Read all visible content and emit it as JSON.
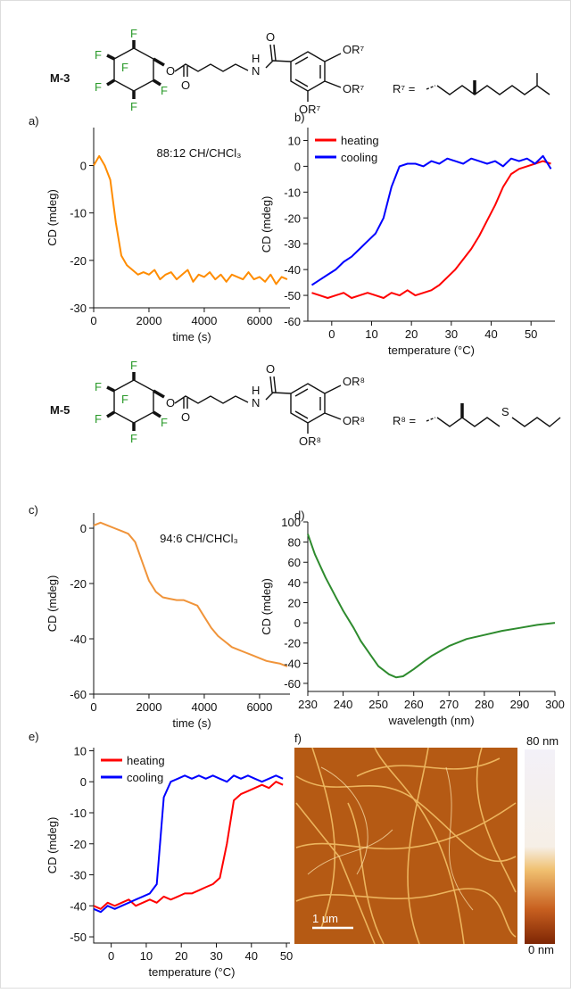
{
  "structures": [
    {
      "label": "M-3",
      "atoms": [
        "F",
        "F",
        "F",
        "F",
        "F",
        "F",
        "O",
        "O",
        "H",
        "N",
        "O",
        "OR⁷",
        "OR⁷",
        "OR⁷"
      ],
      "r_group": "R⁷ ="
    },
    {
      "label": "M-5",
      "atoms": [
        "F",
        "F",
        "F",
        "F",
        "F",
        "F",
        "O",
        "O",
        "H",
        "N",
        "O",
        "OR⁸",
        "OR⁸",
        "OR⁸"
      ],
      "r_group": "R⁸ =",
      "sulfur": "S"
    }
  ],
  "chart_data": [
    {
      "type": "line",
      "panel": "a)",
      "annotation": "88:12 CH/CHCl₃",
      "x_label": "time (s)",
      "y_label": "CD (mdeg)",
      "x": [
        0,
        200,
        400,
        600,
        800,
        1000,
        1200,
        1400,
        1600,
        1800,
        2000,
        2200,
        2400,
        2600,
        2800,
        3000,
        3200,
        3400,
        3600,
        3800,
        4000,
        4200,
        4400,
        4600,
        4800,
        5000,
        5200,
        5400,
        5600,
        5800,
        6000,
        6200,
        6400,
        6600,
        6800,
        7000
      ],
      "series": [
        {
          "color": "#ff8c00",
          "values": [
            0,
            2,
            0,
            -3,
            -12,
            -19,
            -21,
            -22,
            -23,
            -22.5,
            -23,
            -22,
            -24,
            -23,
            -22.5,
            -24,
            -23,
            -22,
            -24.5,
            -23,
            -23.5,
            -22.5,
            -24,
            -23,
            -24.5,
            -23,
            -23.5,
            -24,
            -22.5,
            -24,
            -23.5,
            -24.5,
            -23,
            -25,
            -23.5,
            -24
          ]
        }
      ],
      "xlim": [
        0,
        7100
      ],
      "ylim": [
        -30,
        8
      ],
      "xticks": [
        0,
        2000,
        4000,
        6000
      ],
      "yticks": [
        0,
        -10,
        -20,
        -30
      ]
    },
    {
      "type": "line",
      "panel": "b)",
      "x_label": "temperature (°C)",
      "y_label": "CD (mdeg)",
      "legend": "upper left",
      "x": [
        -5,
        -3,
        -1,
        1,
        3,
        5,
        7,
        9,
        11,
        13,
        15,
        17,
        19,
        21,
        23,
        25,
        27,
        29,
        31,
        33,
        35,
        37,
        39,
        41,
        43,
        45,
        47,
        49,
        51,
        53,
        55
      ],
      "series": [
        {
          "name": "heating",
          "color": "#ff0000",
          "values": [
            -49,
            -50,
            -51,
            -50,
            -49,
            -51,
            -50,
            -49,
            -50,
            -51,
            -49,
            -50,
            -48,
            -50,
            -49,
            -48,
            -46,
            -43,
            -40,
            -36,
            -32,
            -27,
            -21,
            -15,
            -8,
            -3,
            -1,
            0,
            1,
            2,
            1
          ]
        },
        {
          "name": "cooling",
          "color": "#0000ff",
          "values": [
            -46,
            -44,
            -42,
            -40,
            -37,
            -35,
            -32,
            -29,
            -26,
            -20,
            -8,
            0,
            1,
            1,
            0,
            2,
            1,
            3,
            2,
            1,
            3,
            2,
            1,
            2,
            0,
            3,
            2,
            3,
            1,
            4,
            -1
          ]
        }
      ],
      "xlim": [
        -6,
        56
      ],
      "ylim": [
        -60,
        15
      ],
      "xticks": [
        0,
        10,
        20,
        30,
        40,
        50
      ],
      "yticks": [
        10,
        0,
        -10,
        -20,
        -30,
        -40,
        -50,
        -60
      ]
    },
    {
      "type": "line",
      "panel": "c)",
      "annotation": "94:6 CH/CHCl₃",
      "x_label": "time (s)",
      "y_label": "CD (mdeg)",
      "x": [
        0,
        250,
        500,
        750,
        1000,
        1250,
        1500,
        1750,
        2000,
        2250,
        2500,
        2750,
        3000,
        3250,
        3500,
        3750,
        4000,
        4250,
        4500,
        4750,
        5000,
        5250,
        5500,
        5750,
        6000,
        6250,
        6500,
        6750,
        7000
      ],
      "series": [
        {
          "color": "#f0943a",
          "values": [
            1,
            2,
            1,
            0,
            -1,
            -2,
            -5,
            -12,
            -19,
            -23,
            -25,
            -25.5,
            -26,
            -26,
            -27,
            -28,
            -32,
            -36,
            -39,
            -41,
            -43,
            -44,
            -45,
            -46,
            -47,
            -48,
            -48.5,
            -49,
            -50
          ]
        }
      ],
      "xlim": [
        0,
        7100
      ],
      "ylim": [
        -60,
        5.5
      ],
      "xticks": [
        0,
        2000,
        4000,
        6000
      ],
      "yticks": [
        0,
        -20,
        -40,
        -60
      ]
    },
    {
      "type": "line",
      "panel": "d)",
      "x_label": "wavelength (nm)",
      "y_label": "CD (mdeg)",
      "x": [
        230,
        232,
        235,
        238,
        240,
        243,
        245,
        248,
        250,
        253,
        255,
        257,
        260,
        263,
        265,
        270,
        275,
        280,
        285,
        290,
        295,
        300
      ],
      "series": [
        {
          "color": "#2e8b2e",
          "values": [
            88,
            68,
            45,
            25,
            12,
            -5,
            -18,
            -33,
            -43,
            -51,
            -54,
            -53,
            -46,
            -38,
            -33,
            -23,
            -16,
            -12,
            -8,
            -5,
            -2,
            0
          ]
        }
      ],
      "xlim": [
        230,
        300
      ],
      "ylim": [
        -68,
        100
      ],
      "xticks": [
        230,
        240,
        250,
        260,
        270,
        280,
        290,
        300
      ],
      "yticks": [
        100,
        80,
        60,
        40,
        20,
        0,
        -20,
        -40,
        -60
      ]
    },
    {
      "type": "line",
      "panel": "e)",
      "x_label": "temperature (°C)",
      "y_label": "CD (mdeg)",
      "legend": "upper left",
      "x": [
        -5,
        -3,
        -1,
        1,
        3,
        5,
        7,
        9,
        11,
        13,
        15,
        17,
        19,
        21,
        23,
        25,
        27,
        29,
        31,
        33,
        35,
        37,
        39,
        41,
        43,
        45,
        47,
        49
      ],
      "series": [
        {
          "name": "heating",
          "color": "#ff0000",
          "values": [
            -40,
            -41,
            -39,
            -40,
            -39,
            -38,
            -40,
            -39,
            -38,
            -39,
            -37,
            -38,
            -37,
            -36,
            -36,
            -35,
            -34,
            -33,
            -31,
            -20,
            -6,
            -4,
            -3,
            -2,
            -1,
            -2,
            0,
            -1
          ]
        },
        {
          "name": "cooling",
          "color": "#0000ff",
          "values": [
            -41,
            -42,
            -40,
            -41,
            -40,
            -39,
            -38,
            -37,
            -36,
            -33,
            -5,
            0,
            1,
            2,
            1,
            2,
            1,
            2,
            1,
            0,
            2,
            1,
            2,
            1,
            0,
            1,
            2,
            1
          ]
        }
      ],
      "xlim": [
        -5,
        51
      ],
      "ylim": [
        -52,
        11
      ],
      "xticks": [
        0,
        10,
        20,
        30,
        40,
        50
      ],
      "yticks": [
        10,
        0,
        -10,
        -20,
        -30,
        -40,
        -50
      ]
    }
  ],
  "afm": {
    "panel": "f)",
    "scale_bar": "1 um",
    "colorbar_max": "80 nm",
    "colorbar_min": "0 nm"
  }
}
